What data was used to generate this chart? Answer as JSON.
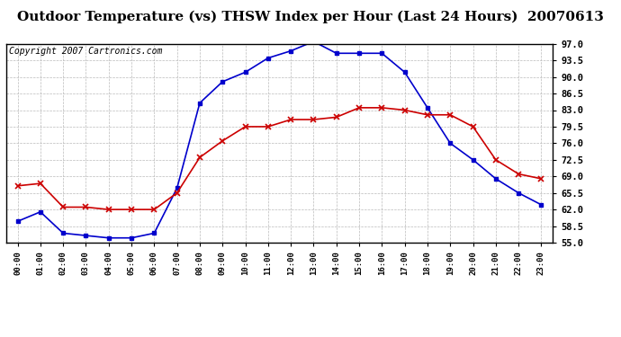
{
  "title": "Outdoor Temperature (vs) THSW Index per Hour (Last 24 Hours)  20070613",
  "copyright": "Copyright 2007 Cartronics.com",
  "hours": [
    "00:00",
    "01:00",
    "02:00",
    "03:00",
    "04:00",
    "05:00",
    "06:00",
    "07:00",
    "08:00",
    "09:00",
    "10:00",
    "11:00",
    "12:00",
    "13:00",
    "14:00",
    "15:00",
    "16:00",
    "17:00",
    "18:00",
    "19:00",
    "20:00",
    "21:00",
    "22:00",
    "23:00"
  ],
  "temp": [
    67.0,
    67.5,
    62.5,
    62.5,
    62.0,
    62.0,
    62.0,
    65.5,
    73.0,
    76.5,
    79.5,
    79.5,
    81.0,
    81.0,
    81.5,
    83.5,
    83.5,
    83.0,
    82.0,
    82.0,
    79.5,
    72.5,
    69.5,
    68.5
  ],
  "thsw": [
    59.5,
    61.5,
    57.0,
    56.5,
    56.0,
    56.0,
    57.0,
    66.5,
    84.5,
    89.0,
    91.0,
    94.0,
    95.5,
    97.5,
    95.0,
    95.0,
    95.0,
    91.0,
    83.5,
    76.0,
    72.5,
    68.5,
    65.5,
    63.0
  ],
  "ylim": [
    55.0,
    97.0
  ],
  "yticks": [
    55.0,
    58.5,
    62.0,
    65.5,
    69.0,
    72.5,
    76.0,
    79.5,
    83.0,
    86.5,
    90.0,
    93.5,
    97.0
  ],
  "temp_color": "#cc0000",
  "thsw_color": "#0000cc",
  "bg_color": "#ffffff",
  "plot_bg_color": "#ffffff",
  "grid_color": "#bbbbbb",
  "title_fontsize": 11,
  "copyright_fontsize": 7
}
